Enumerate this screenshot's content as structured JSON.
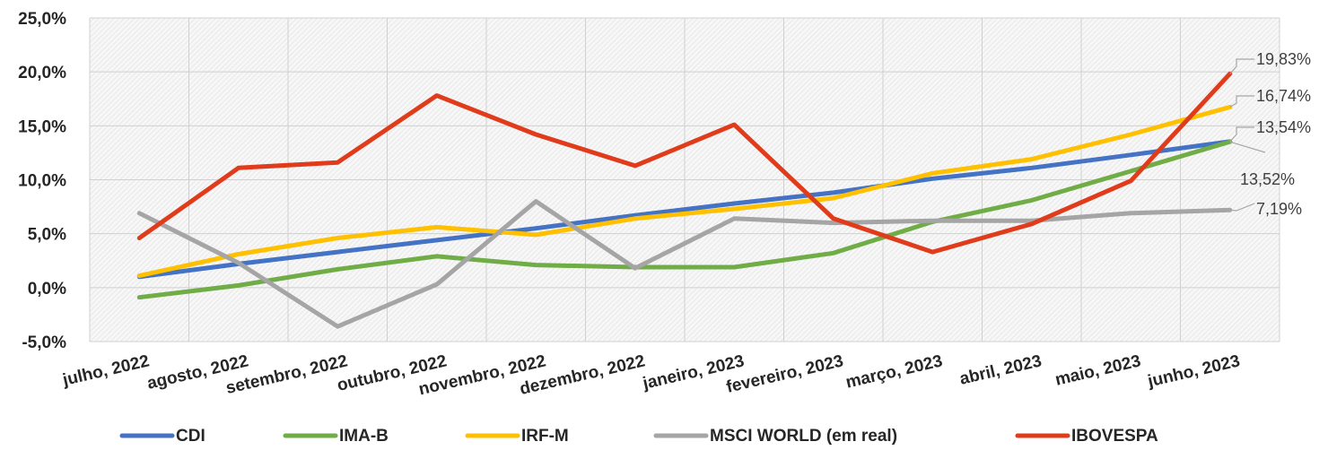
{
  "chart_data": {
    "type": "line",
    "categories": [
      "julho, 2022",
      "agosto, 2022",
      "setembro, 2022",
      "outubro, 2022",
      "novembro, 2022",
      "dezembro, 2022",
      "janeiro, 2023",
      "fevereiro, 2023",
      "março, 2023",
      "abril, 2023",
      "maio, 2023",
      "junho, 2023"
    ],
    "ylim": [
      -5,
      25
    ],
    "yticks": [
      -5,
      0,
      5,
      10,
      15,
      20,
      25
    ],
    "ytick_labels": [
      "-5,0%",
      "0,0%",
      "5,0%",
      "10,0%",
      "15,0%",
      "20,0%",
      "25,0%"
    ],
    "grid": true,
    "legend_position": "bottom",
    "series": [
      {
        "name": "CDI",
        "color": "#4472C4",
        "values": [
          1.0,
          2.2,
          3.3,
          4.4,
          5.5,
          6.7,
          7.8,
          8.8,
          10.1,
          11.1,
          12.3,
          13.54
        ],
        "end_label": "13,54%"
      },
      {
        "name": "IMA-B",
        "color": "#70AD47",
        "values": [
          -0.9,
          0.2,
          1.7,
          2.9,
          2.1,
          1.9,
          1.9,
          3.2,
          6.1,
          8.1,
          10.8,
          13.52
        ],
        "end_label": "13,52%"
      },
      {
        "name": "IRF-M",
        "color": "#FFC000",
        "values": [
          1.1,
          3.1,
          4.6,
          5.6,
          4.9,
          6.4,
          7.3,
          8.3,
          10.6,
          11.9,
          14.2,
          16.74
        ],
        "end_label": "16,74%"
      },
      {
        "name": "MSCI WORLD (em real)",
        "color": "#A5A5A5",
        "values": [
          6.9,
          2.3,
          -3.6,
          0.3,
          8.0,
          1.8,
          6.4,
          6.0,
          6.2,
          6.2,
          6.9,
          7.19
        ],
        "end_label": "7,19%"
      },
      {
        "name": "IBOVESPA",
        "color": "#E03C1C",
        "values": [
          4.6,
          11.1,
          11.6,
          17.8,
          14.2,
          11.3,
          15.1,
          6.4,
          3.3,
          5.9,
          9.9,
          19.83
        ],
        "end_label": "19,83%"
      }
    ]
  }
}
